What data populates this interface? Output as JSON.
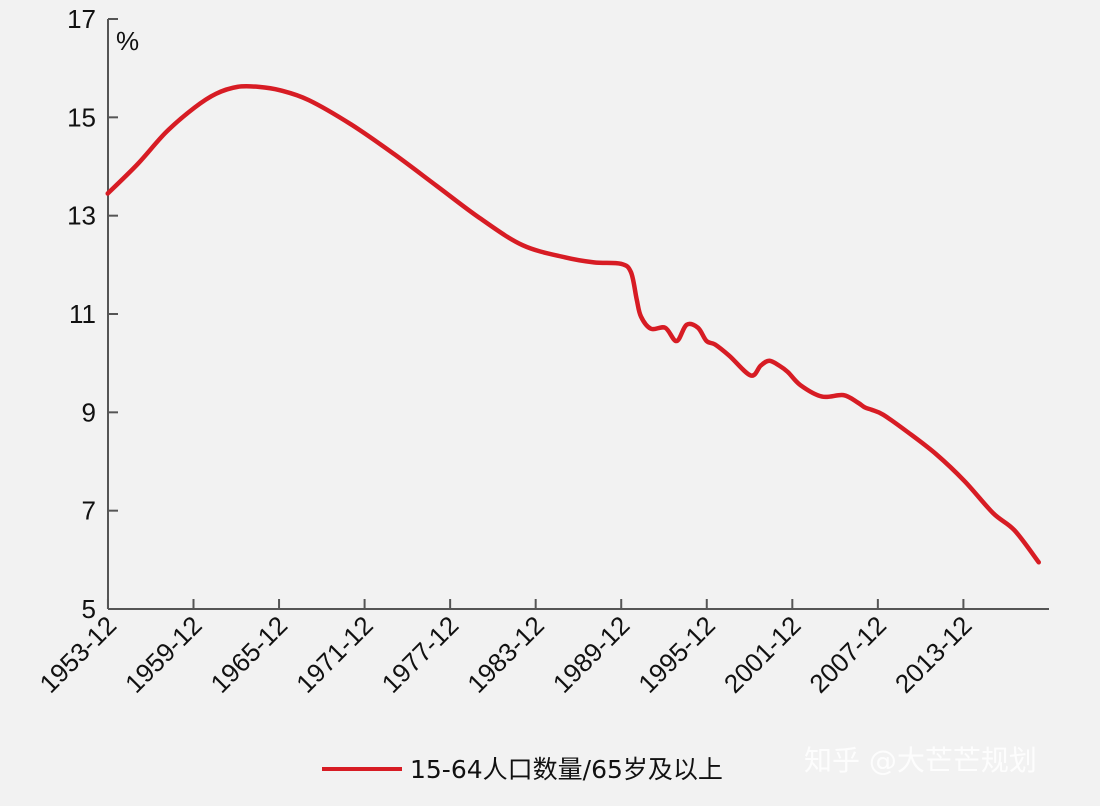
{
  "chart_data": {
    "type": "line",
    "title": "",
    "xlabel": "",
    "ylabel": "",
    "unit_label": "%",
    "x_tick_labels": [
      "1953-12",
      "1959-12",
      "1965-12",
      "1971-12",
      "1977-12",
      "1983-12",
      "1989-12",
      "1995-12",
      "2001-12",
      "2007-12",
      "2013-12"
    ],
    "x_range": [
      1953.92,
      2019.92
    ],
    "y_ticks": [
      5,
      7,
      9,
      11,
      13,
      15,
      17
    ],
    "ylim": [
      5,
      17
    ],
    "grid": false,
    "legend_position": "bottom",
    "series": [
      {
        "name": "15-64人口数量/65岁及以上",
        "color": "#d71c24",
        "x": [
          1953.9,
          1956,
          1958,
          1960,
          1961.5,
          1963,
          1964.5,
          1966,
          1968,
          1971,
          1974,
          1977,
          1980,
          1983,
          1986,
          1988,
          1989.9,
          1990.6,
          1991,
          1991.3,
          1992,
          1993,
          1993.8,
          1994.5,
          1995.3,
          1995.9,
          1996.5,
          1997.5,
          1999,
          1999.7,
          2000.3,
          2001,
          2001.6,
          2002.5,
          2004,
          2005.5,
          2006.5,
          2007,
          2007.5,
          2008.3,
          2010,
          2012,
          2014,
          2016,
          2017.5,
          2019.2
        ],
        "y": [
          13.45,
          14.05,
          14.7,
          15.2,
          15.48,
          15.62,
          15.62,
          15.55,
          15.35,
          14.85,
          14.25,
          13.6,
          12.95,
          12.4,
          12.15,
          12.05,
          12.02,
          11.85,
          11.3,
          10.95,
          10.7,
          10.72,
          10.45,
          10.78,
          10.72,
          10.45,
          10.38,
          10.15,
          9.75,
          9.95,
          10.05,
          9.95,
          9.82,
          9.55,
          9.32,
          9.35,
          9.2,
          9.1,
          9.05,
          8.95,
          8.6,
          8.15,
          7.6,
          6.95,
          6.6,
          5.95
        ]
      }
    ]
  },
  "watermark": "知乎 @大芒芒规划",
  "colors": {
    "background": "#f2f2f2",
    "axis": "#555555",
    "series": "#d71c24"
  }
}
